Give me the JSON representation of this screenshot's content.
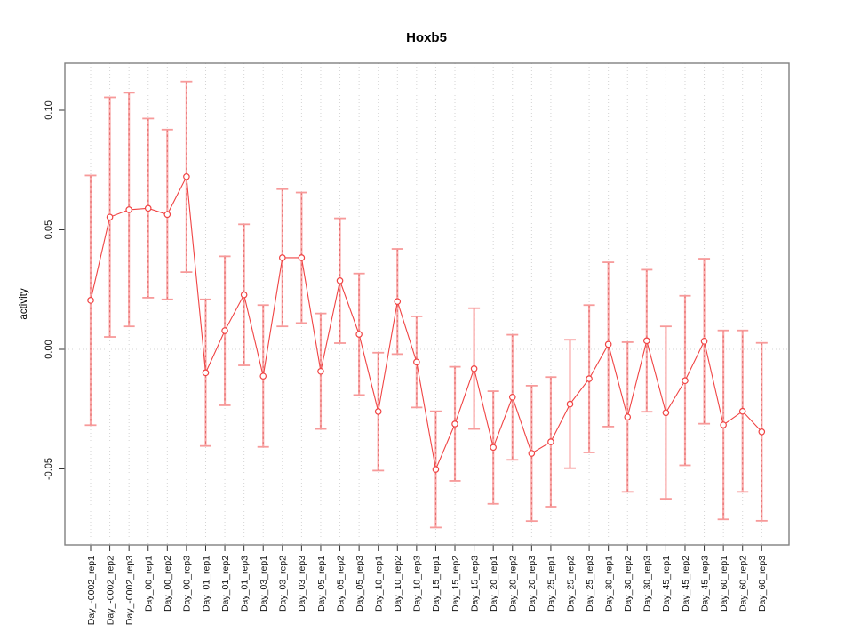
{
  "chart_data": {
    "type": "line",
    "title": "Hoxb5",
    "xlabel": "",
    "ylabel": "activity",
    "ylim": [
      -0.082,
      0.12
    ],
    "yticks": [
      0.1,
      0.05,
      0.0,
      -0.05
    ],
    "ytick_labels": [
      "0.10",
      "0.05",
      "0.00",
      "-0.05"
    ],
    "grid": "dotted vertical line at each category, dotted horizontal line at y=0",
    "legend": "none",
    "marker": "open-circle",
    "error_bars": true,
    "categories": [
      "Day_-0002_rep1",
      "Day_-0002_rep2",
      "Day_-0002_rep3",
      "Day_00_rep1",
      "Day_00_rep2",
      "Day_00_rep3",
      "Day_01_rep1",
      "Day_01_rep2",
      "Day_01_rep3",
      "Day_03_rep1",
      "Day_03_rep2",
      "Day_03_rep3",
      "Day_05_rep1",
      "Day_05_rep2",
      "Day_05_rep3",
      "Day_10_rep1",
      "Day_10_rep2",
      "Day_10_rep3",
      "Day_15_rep1",
      "Day_15_rep2",
      "Day_15_rep3",
      "Day_20_rep1",
      "Day_20_rep2",
      "Day_20_rep3",
      "Day_25_rep1",
      "Day_25_rep2",
      "Day_25_rep3",
      "Day_30_rep1",
      "Day_30_rep2",
      "Day_30_rep3",
      "Day_45_rep1",
      "Day_45_rep2",
      "Day_45_rep3",
      "Day_60_rep1",
      "Day_60_rep2",
      "Day_60_rep3"
    ],
    "series": [
      {
        "name": "activity",
        "values": [
          0.0205,
          0.0553,
          0.0584,
          0.059,
          0.0564,
          0.0722,
          -0.0098,
          0.0078,
          0.0228,
          -0.0112,
          0.0383,
          0.0383,
          -0.0092,
          0.0287,
          0.0063,
          -0.026,
          0.02,
          -0.0053,
          -0.0502,
          -0.0312,
          -0.0081,
          -0.041,
          -0.02,
          -0.0435,
          -0.0387,
          -0.0229,
          -0.0123,
          0.0021,
          -0.0283,
          0.0036,
          -0.0265,
          -0.0131,
          0.0034,
          -0.0316,
          -0.0259,
          -0.0345
        ],
        "error_low": [
          -0.0317,
          0.0052,
          0.0096,
          0.0216,
          0.0209,
          0.0323,
          -0.0404,
          -0.0234,
          -0.0067,
          -0.0408,
          0.0096,
          0.011,
          -0.0333,
          0.0026,
          -0.0191,
          -0.0507,
          -0.002,
          -0.0243,
          -0.0745,
          -0.055,
          -0.0333,
          -0.0646,
          -0.0462,
          -0.0718,
          -0.0658,
          -0.0497,
          -0.0431,
          -0.0323,
          -0.0596,
          -0.0261,
          -0.0625,
          -0.0485,
          -0.0311,
          -0.0711,
          -0.0596,
          -0.0717
        ],
        "error_high": [
          0.0727,
          0.1054,
          0.1073,
          0.0965,
          0.0919,
          0.112,
          0.0209,
          0.0389,
          0.0523,
          0.0185,
          0.067,
          0.0656,
          0.015,
          0.0548,
          0.0317,
          -0.0014,
          0.042,
          0.0138,
          -0.0259,
          -0.0073,
          0.0172,
          -0.0175,
          0.0061,
          -0.0152,
          -0.0116,
          0.004,
          0.0185,
          0.0364,
          0.003,
          0.0333,
          0.0096,
          0.0224,
          0.0379,
          0.0079,
          0.0079,
          0.0027
        ]
      }
    ],
    "colors": {
      "series_line": "#f04343",
      "point_stroke": "#f04343",
      "error_bar": "#f9a8a8",
      "error_bar_dash": "#e05e5e",
      "gridline": "#d4d4d4",
      "box": "#808080"
    }
  }
}
